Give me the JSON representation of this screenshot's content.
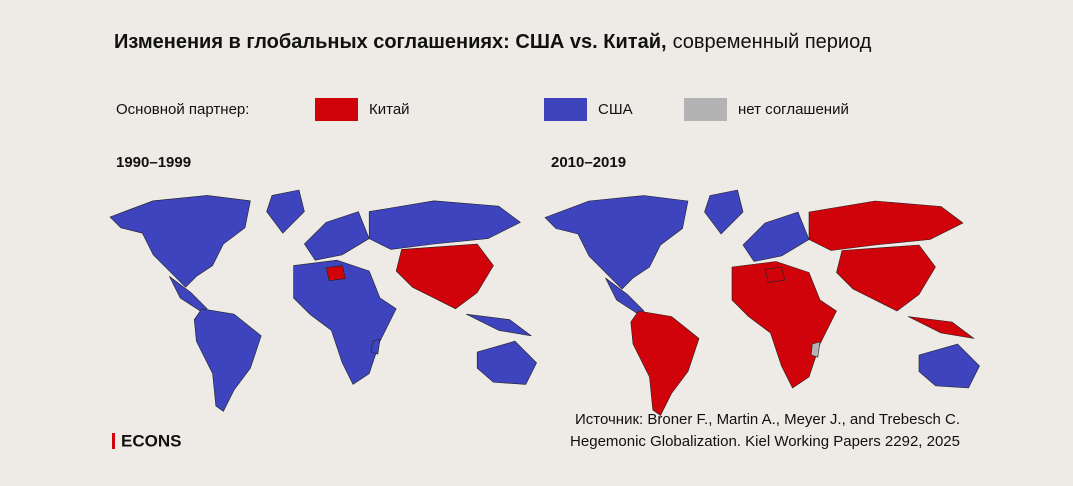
{
  "title_bold": "Изменения в глобальных соглашениях: США vs. Китай,",
  "title_rest": "современный период",
  "legend": {
    "label": "Основной партнер:",
    "items": [
      {
        "name": "Китай",
        "color": "#d0020a"
      },
      {
        "name": "США",
        "color": "#3e44bd"
      },
      {
        "name": "нет соглашений",
        "color": "#b3b3b3"
      }
    ]
  },
  "panels": [
    {
      "label": "1990–1999"
    },
    {
      "label": "2010–2019"
    }
  ],
  "source": [
    "Источник: Broner F., Martin A., Meyer J., and Trebesch C.",
    "Hegemonic Globalization. Kiel Working Papers 2292, 2025"
  ],
  "logo": "ECONS"
}
